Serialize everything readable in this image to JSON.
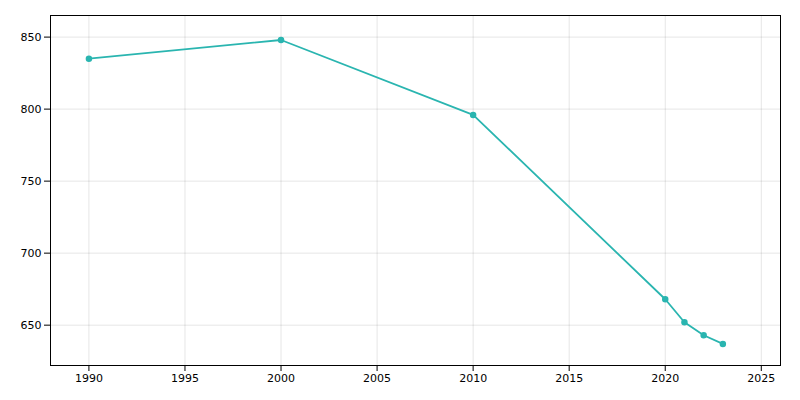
{
  "chart_data": {
    "type": "line",
    "x": [
      1990,
      2000,
      2010,
      2020,
      2021,
      2022,
      2023
    ],
    "values": [
      835,
      848,
      796,
      668,
      652,
      643,
      637
    ],
    "color": "#2AB5B0",
    "marker": "circle",
    "xlim": [
      1988,
      2026
    ],
    "ylim": [
      622,
      865
    ],
    "xticks": [
      1990,
      1995,
      2000,
      2005,
      2010,
      2015,
      2020,
      2025
    ],
    "yticks": [
      650,
      700,
      750,
      800,
      850
    ],
    "grid": true
  }
}
